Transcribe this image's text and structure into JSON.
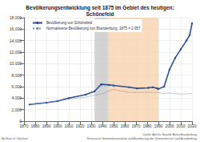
{
  "chart_data": {
    "type": "line",
    "title": "Bevölkerungsentwicklung seit 1875 im Gebiet des heutigen:",
    "subtitle": "Schönefeld",
    "series": [
      {
        "name": "Bevölkerung von Schönefeld",
        "color": "#2f4f8f",
        "marker": "circle",
        "line_style": "solid",
        "x": [
          1875,
          1890,
          1900,
          1910,
          1925,
          1933,
          1939,
          1946,
          1950,
          1964,
          1971,
          1981,
          1985,
          1989,
          1990,
          1995,
          2000,
          2005,
          2010,
          2015,
          2018,
          2020
        ],
        "values": [
          2900,
          3200,
          3500,
          4000,
          4600,
          5200,
          6400,
          6300,
          6200,
          5900,
          5700,
          5800,
          5900,
          5700,
          5600,
          6000,
          9000,
          11000,
          12500,
          14000,
          15000,
          17000
        ]
      },
      {
        "name": "Normalisierte Bevölkerung von Brandenburg, 1875 = 2.957",
        "color": "#7f8fa6",
        "marker": "none",
        "line_style": "dotted",
        "x": [
          1875,
          1890,
          1910,
          1925,
          1939,
          1946,
          1950,
          1964,
          1971,
          1981,
          1989,
          1995,
          2000,
          2010,
          2020
        ],
        "values": [
          2957,
          3200,
          3800,
          4200,
          4700,
          5300,
          5500,
          5000,
          5000,
          5000,
          5000,
          4800,
          4900,
          4700,
          4800
        ]
      }
    ],
    "shaded_periods": [
      {
        "from": 1933,
        "to": 1945,
        "color": "#c8c8c8"
      },
      {
        "from": 1945,
        "to": 1990,
        "color": "#f8d2b0"
      }
    ],
    "xlim": [
      1870,
      2020
    ],
    "xticks": [
      1870,
      1880,
      1890,
      1900,
      1910,
      1920,
      1930,
      1940,
      1950,
      1960,
      1970,
      1980,
      1990,
      2000,
      2010,
      2020
    ],
    "ylim": [
      0,
      18000
    ],
    "yticks": [
      0,
      {
        "value": 2000,
        "label": "2,000"
      },
      {
        "value": 4000,
        "label": "4,000"
      },
      {
        "value": 6000,
        "label": "6,000"
      },
      {
        "value": 8000,
        "label": "8,000"
      },
      {
        "value": 10000,
        "label": "10,000"
      },
      {
        "value": 12000,
        "label": "12,000"
      },
      {
        "value": 14000,
        "label": "14,000"
      },
      {
        "value": 16000,
        "label": "16,000"
      },
      {
        "value": 18000,
        "label": "18,000"
      }
    ],
    "grid": true,
    "legend": "top-left",
    "annotations": [
      "By Hans G. Oberlack",
      "Quelle: Amt für Statistik Berlin-Brandenburg",
      "Historische Gemeindestatistiken und Bevölkerung der Gemeinden im Land Brandenburg"
    ]
  }
}
